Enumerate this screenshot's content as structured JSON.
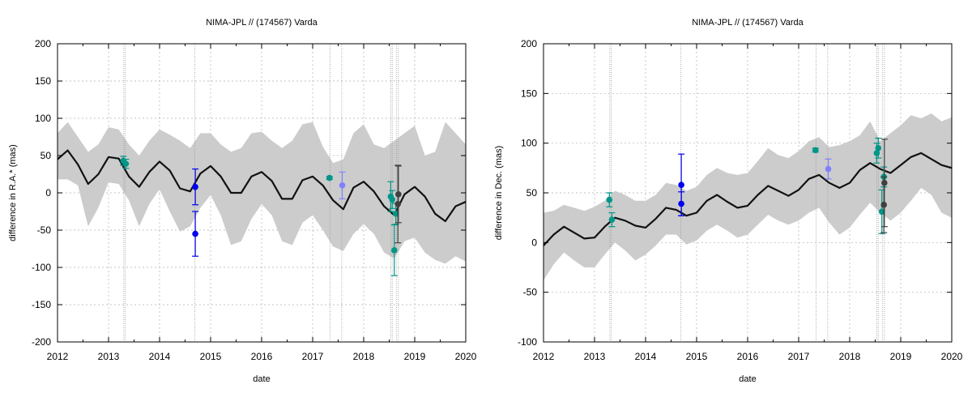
{
  "chart_data": [
    {
      "type": "scatter",
      "title": "NIMA-JPL // (174567) Varda",
      "xlabel": "date",
      "ylabel": "difference in R.A.* (mas)",
      "xlim": [
        2012,
        2020
      ],
      "ylim": [
        -200,
        200
      ],
      "xticks": [
        "2012",
        "2013",
        "2014",
        "2015",
        "2016",
        "2017",
        "2018",
        "2019",
        "2020"
      ],
      "yticks": [
        "-200",
        "-150",
        "-100",
        "-50",
        "0",
        "50",
        "100",
        "150",
        "200"
      ],
      "grid": true,
      "model_curve": {
        "x": [
          2012.0,
          2012.2,
          2012.4,
          2012.6,
          2012.8,
          2013.0,
          2013.2,
          2013.4,
          2013.6,
          2013.8,
          2014.0,
          2014.2,
          2014.4,
          2014.6,
          2014.8,
          2015.0,
          2015.2,
          2015.4,
          2015.6,
          2015.8,
          2016.0,
          2016.2,
          2016.4,
          2016.6,
          2016.8,
          2017.0,
          2017.2,
          2017.4,
          2017.6,
          2017.8,
          2018.0,
          2018.2,
          2018.4,
          2018.6,
          2018.8,
          2019.0,
          2019.2,
          2019.4,
          2019.6,
          2019.8,
          2020.0
        ],
        "y": [
          45,
          57,
          38,
          12,
          25,
          48,
          46,
          22,
          8,
          28,
          42,
          30,
          6,
          2,
          26,
          36,
          22,
          0,
          0,
          22,
          28,
          16,
          -8,
          -8,
          17,
          22,
          10,
          -10,
          -22,
          7,
          15,
          2,
          -18,
          -30,
          -2,
          8,
          -5,
          -28,
          -38,
          -18,
          -12
        ],
        "upper": [
          80,
          95,
          75,
          55,
          65,
          88,
          85,
          65,
          50,
          70,
          85,
          78,
          70,
          60,
          80,
          80,
          65,
          55,
          60,
          80,
          82,
          70,
          60,
          70,
          92,
          95,
          62,
          40,
          45,
          80,
          92,
          65,
          60,
          70,
          80,
          90,
          50,
          55,
          95,
          80,
          65
        ],
        "lower": [
          18,
          18,
          10,
          -45,
          -20,
          14,
          12,
          -10,
          -45,
          -15,
          5,
          -25,
          -52,
          -45,
          -20,
          -3,
          -30,
          -70,
          -65,
          -35,
          -15,
          -30,
          -65,
          -70,
          -40,
          -30,
          -50,
          -72,
          -78,
          -55,
          -42,
          -55,
          -80,
          -88,
          -65,
          -60,
          -80,
          -90,
          -95,
          -85,
          -92
        ]
      },
      "vlines": [
        2013.3,
        2013.33,
        2014.69,
        2017.34,
        2017.57,
        2018.53,
        2018.56,
        2018.64,
        2018.68
      ],
      "series": [
        {
          "color": "#009688",
          "points": [
            {
              "x": 2013.29,
              "y": 43,
              "err": 6
            },
            {
              "x": 2013.34,
              "y": 39,
              "err": 6
            },
            {
              "x": 2017.33,
              "y": 20,
              "err": 2
            },
            {
              "x": 2018.53,
              "y": -5,
              "err": 20
            },
            {
              "x": 2018.56,
              "y": -9,
              "err": 12
            },
            {
              "x": 2018.63,
              "y": -28,
              "err": 14
            },
            {
              "x": 2018.6,
              "y": -77,
              "err": 34
            }
          ]
        },
        {
          "color": "#0000ee",
          "points": [
            {
              "x": 2014.7,
              "y": 8,
              "err": 24
            },
            {
              "x": 2014.7,
              "y": -55,
              "err": 30
            }
          ]
        },
        {
          "color": "#8080ff",
          "points": [
            {
              "x": 2017.58,
              "y": 10,
              "err": 18
            }
          ]
        },
        {
          "color": "#404040",
          "points": [
            {
              "x": 2018.68,
              "y": -2,
              "err": 38
            },
            {
              "x": 2018.67,
              "y": -15,
              "err": 52
            }
          ]
        }
      ]
    },
    {
      "type": "scatter",
      "title": "NIMA-JPL // (174567) Varda",
      "xlabel": "date",
      "ylabel": "difference in Dec. (mas)",
      "xlim": [
        2012,
        2020
      ],
      "ylim": [
        -100,
        200
      ],
      "xticks": [
        "2012",
        "2013",
        "2014",
        "2015",
        "2016",
        "2017",
        "2018",
        "2019",
        "2020"
      ],
      "yticks": [
        "-100",
        "-50",
        "0",
        "50",
        "100",
        "150",
        "200"
      ],
      "grid": true,
      "model_curve": {
        "x": [
          2012.0,
          2012.2,
          2012.4,
          2012.6,
          2012.8,
          2013.0,
          2013.2,
          2013.4,
          2013.6,
          2013.8,
          2014.0,
          2014.2,
          2014.4,
          2014.6,
          2014.8,
          2015.0,
          2015.2,
          2015.4,
          2015.6,
          2015.8,
          2016.0,
          2016.2,
          2016.4,
          2016.6,
          2016.8,
          2017.0,
          2017.2,
          2017.4,
          2017.6,
          2017.8,
          2018.0,
          2018.2,
          2018.4,
          2018.6,
          2018.8,
          2019.0,
          2019.2,
          2019.4,
          2019.6,
          2019.8,
          2020.0
        ],
        "y": [
          -3,
          8,
          16,
          10,
          4,
          5,
          16,
          25,
          22,
          17,
          15,
          24,
          35,
          33,
          27,
          30,
          42,
          48,
          41,
          35,
          37,
          48,
          57,
          52,
          47,
          53,
          64,
          68,
          60,
          55,
          60,
          73,
          80,
          74,
          70,
          78,
          86,
          90,
          84,
          78,
          75
        ],
        "upper": [
          30,
          32,
          38,
          35,
          32,
          36,
          42,
          52,
          48,
          42,
          42,
          48,
          60,
          58,
          52,
          56,
          68,
          75,
          70,
          68,
          70,
          82,
          95,
          88,
          85,
          92,
          102,
          106,
          96,
          98,
          102,
          108,
          122,
          102,
          110,
          118,
          128,
          125,
          130,
          122,
          126
        ],
        "lower": [
          -38,
          -22,
          -10,
          -18,
          -25,
          -25,
          -12,
          0,
          -8,
          -18,
          -12,
          -3,
          8,
          8,
          -2,
          2,
          12,
          18,
          12,
          5,
          8,
          18,
          28,
          22,
          18,
          22,
          30,
          35,
          20,
          8,
          15,
          28,
          40,
          30,
          22,
          30,
          42,
          55,
          48,
          30,
          25
        ]
      },
      "vlines": [
        2013.3,
        2013.33,
        2014.69,
        2017.34,
        2017.57,
        2018.53,
        2018.56,
        2018.64,
        2018.68
      ],
      "series": [
        {
          "color": "#009688",
          "points": [
            {
              "x": 2013.29,
              "y": 43,
              "err": 7
            },
            {
              "x": 2013.34,
              "y": 23,
              "err": 7
            },
            {
              "x": 2017.33,
              "y": 93,
              "err": 2
            },
            {
              "x": 2018.53,
              "y": 90,
              "err": 10
            },
            {
              "x": 2018.56,
              "y": 95,
              "err": 10
            },
            {
              "x": 2018.63,
              "y": 31,
              "err": 22
            },
            {
              "x": 2018.67,
              "y": 66,
              "err": 10
            }
          ]
        },
        {
          "color": "#0000ee",
          "points": [
            {
              "x": 2014.7,
              "y": 58,
              "err": 31
            },
            {
              "x": 2014.7,
              "y": 39,
              "err": 12
            }
          ]
        },
        {
          "color": "#8080ff",
          "points": [
            {
              "x": 2017.58,
              "y": 74,
              "err": 10
            }
          ]
        },
        {
          "color": "#404040",
          "points": [
            {
              "x": 2018.68,
              "y": 60,
              "err": 44
            },
            {
              "x": 2018.67,
              "y": 38,
              "err": 28
            }
          ]
        }
      ]
    }
  ]
}
